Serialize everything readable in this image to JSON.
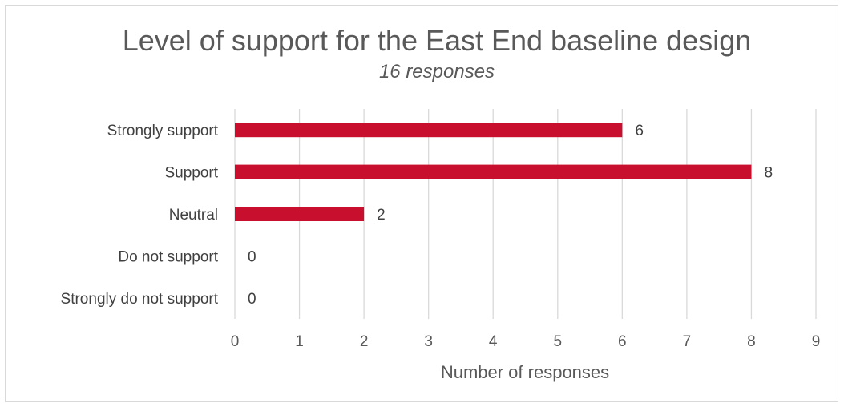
{
  "chart_data": {
    "type": "bar",
    "orientation": "horizontal",
    "title": "Level of support for the East End baseline design",
    "subtitle": "16 responses",
    "xlabel": "Number of responses",
    "ylabel": "",
    "categories": [
      "Strongly support",
      "Support",
      "Neutral",
      "Do not support",
      "Strongly do not support"
    ],
    "values": [
      6,
      8,
      2,
      0,
      0
    ],
    "xlim": [
      0,
      9
    ],
    "xticks": [
      0,
      1,
      2,
      3,
      4,
      5,
      6,
      7,
      8,
      9
    ],
    "grid": "vertical",
    "legend": "none",
    "bar_color": "#c8102e",
    "grid_color": "#d9d9d9"
  }
}
